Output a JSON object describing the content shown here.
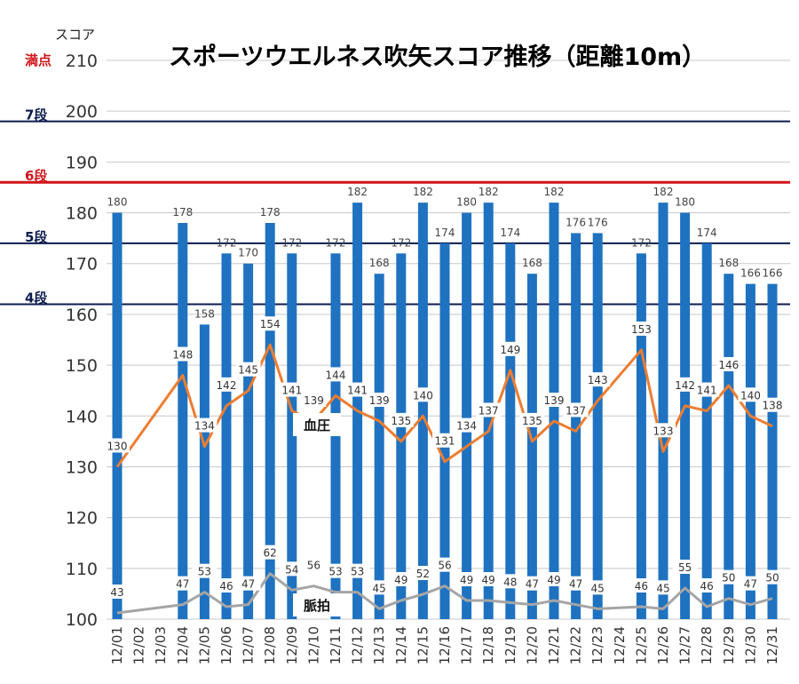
{
  "chart_data": {
    "type": "bar",
    "title": "スポーツウエルネス吹矢スコア推移（距離10m）",
    "ylabel": "スコア",
    "ylim": [
      100,
      210
    ],
    "yticks": [
      100,
      110,
      120,
      130,
      140,
      150,
      160,
      170,
      180,
      190,
      200,
      210
    ],
    "grid": true,
    "categories": [
      "12/01",
      "12/02",
      "12/03",
      "12/04",
      "12/05",
      "12/06",
      "12/07",
      "12/08",
      "12/09",
      "12/10",
      "12/11",
      "12/12",
      "12/13",
      "12/14",
      "12/15",
      "12/16",
      "12/17",
      "12/18",
      "12/19",
      "12/20",
      "12/21",
      "12/22",
      "12/23",
      "12/24",
      "12/25",
      "12/26",
      "12/27",
      "12/28",
      "12/29",
      "12/30",
      "12/31"
    ],
    "series": [
      {
        "values": [
          180,
          null,
          null,
          178,
          158,
          172,
          170,
          178,
          172,
          null,
          172,
          182,
          168,
          172,
          182,
          174,
          180,
          182,
          174,
          168,
          182,
          176,
          176,
          null,
          172,
          182,
          180,
          174,
          168,
          166,
          166
        ],
        "labels": [
          "180",
          "",
          "",
          "178",
          "158",
          "172",
          "170",
          "178",
          "172",
          "",
          "172",
          "182",
          "168",
          "172",
          "182",
          "174",
          "180",
          "182",
          "174",
          "168",
          "182",
          "176",
          "176",
          "",
          "172",
          "182",
          "180",
          "174",
          "168",
          "166",
          "166"
        ],
        "color": "#1f72c0"
      },
      {
        "name": "血圧",
        "type": "line",
        "values": [
          130,
          null,
          null,
          148,
          134,
          142,
          145,
          154,
          141,
          139,
          144,
          141,
          139,
          135,
          140,
          131,
          134,
          137,
          149,
          135,
          139,
          137,
          143,
          null,
          153,
          133,
          142,
          141,
          146,
          140,
          138
        ],
        "labels": [
          "130",
          "",
          "",
          "148",
          "134",
          "142",
          "145",
          "154",
          "141",
          "139",
          "144",
          "141",
          "139",
          "135",
          "140",
          "131",
          "134",
          "137",
          "149",
          "135",
          "139",
          "137",
          "143",
          "",
          "153",
          "133",
          "142",
          "141",
          "146",
          "140",
          "138"
        ],
        "color": "#ed7d31"
      },
      {
        "name": "脈拍",
        "type": "line",
        "values": [
          43,
          null,
          null,
          47,
          53,
          46,
          47,
          62,
          54,
          56,
          53,
          53,
          45,
          49,
          52,
          56,
          49,
          49,
          48,
          47,
          49,
          47,
          45,
          null,
          46,
          45,
          55,
          46,
          50,
          47,
          50
        ],
        "labels": [
          "43",
          "",
          "",
          "47",
          "53",
          "46",
          "47",
          "62",
          "54",
          "56",
          "53",
          "53",
          "45",
          "49",
          "52",
          "56",
          "49",
          "49",
          "48",
          "47",
          "49",
          "47",
          "45",
          "",
          "46",
          "45",
          "55",
          "46",
          "50",
          "47",
          "50"
        ],
        "color": "#a5a5a5"
      }
    ],
    "reference_lines": [
      {
        "label": "満点",
        "value": 210,
        "color": "#d0141b"
      },
      {
        "label": "7段",
        "value": 198,
        "color": "#0c1b4d"
      },
      {
        "label": "6段",
        "value": 186,
        "color": "#d0141b"
      },
      {
        "label": "5段",
        "value": 174,
        "color": "#0c1b4d"
      },
      {
        "label": "4段",
        "value": 162,
        "color": "#0c1b4d"
      }
    ]
  }
}
